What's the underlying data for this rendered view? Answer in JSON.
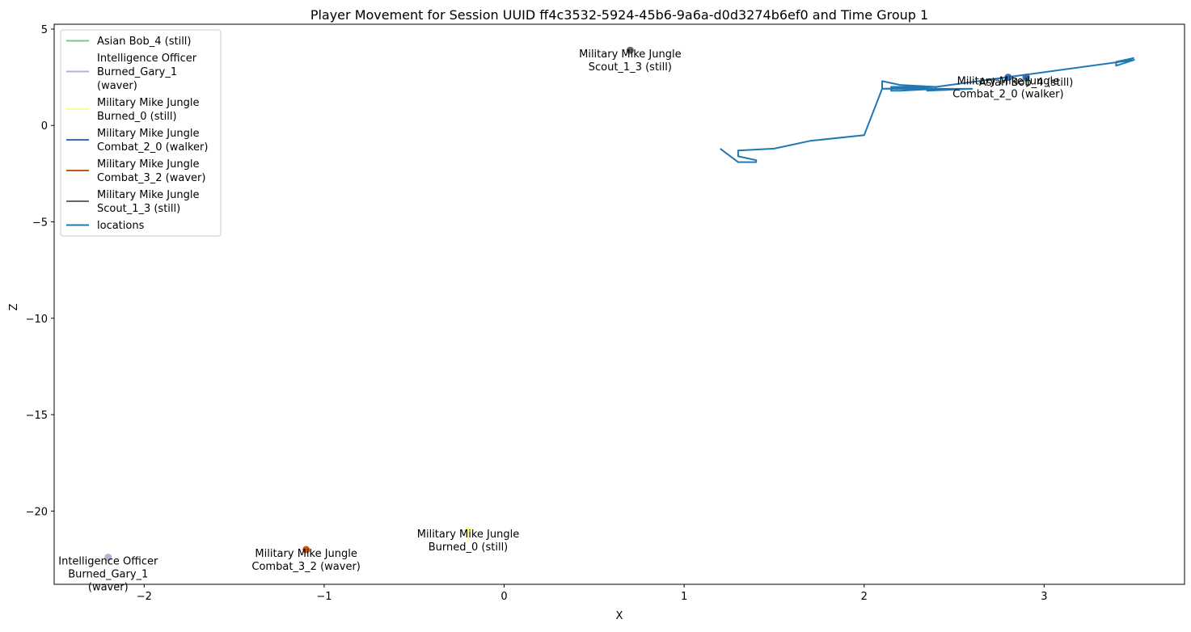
{
  "chart_data": {
    "type": "line",
    "title": "Player Movement for Session UUID ff4c3532-5924-45b6-9a6a-d0d3274b6ef0 and Time Group 1",
    "xlabel": "X",
    "ylabel": "Z",
    "xlim": [
      -2.5,
      3.78
    ],
    "ylim": [
      -23.8,
      5.25
    ],
    "xticks": [
      -2,
      -1,
      0,
      1,
      2,
      3
    ],
    "yticks": [
      5,
      0,
      -5,
      -10,
      -15,
      -20
    ],
    "grid": false,
    "legend_position": "upper-left",
    "legend": [
      {
        "label_lines": [
          "Asian Bob_4 (still)"
        ],
        "color": "#7fc97f"
      },
      {
        "label_lines": [
          "Intelligence Officer",
          "Burned_Gary_1",
          "(waver)"
        ],
        "color": "#beaed4"
      },
      {
        "label_lines": [
          "Military Mike Jungle",
          "Burned_0 (still)"
        ],
        "color": "#ffff99"
      },
      {
        "label_lines": [
          "Military Mike Jungle",
          "Combat_2_0 (walker)"
        ],
        "color": "#386cb0"
      },
      {
        "label_lines": [
          "Military Mike Jungle",
          "Combat_3_2 (waver)"
        ],
        "color": "#bf5b17"
      },
      {
        "label_lines": [
          "Military Mike Jungle",
          "Scout_1_3 (still)"
        ],
        "color": "#666666"
      },
      {
        "label_lines": [
          "locations"
        ],
        "color": "#1f77b4"
      }
    ],
    "series": [
      {
        "name": "Asian Bob_4 (still)",
        "color": "#7fc97f",
        "x": [
          2.9,
          2.9
        ],
        "y": [
          2.45,
          2.2
        ]
      },
      {
        "name": "Intelligence Officer Burned_Gary_1 (waver)",
        "color": "#beaed4",
        "x": [
          -2.2,
          -2.18
        ],
        "y": [
          -22.4,
          -22.5
        ]
      },
      {
        "name": "Military Mike Jungle Burned_0 (still)",
        "color": "#ffff99",
        "x": [
          -0.2,
          -0.2
        ],
        "y": [
          -21.0,
          -21.6
        ]
      },
      {
        "name": "Military Mike Jungle Combat_2_0 (walker)",
        "color": "#386cb0",
        "x": [
          2.8,
          2.82
        ],
        "y": [
          2.5,
          2.4
        ]
      },
      {
        "name": "Military Mike Jungle Combat_3_2 (waver)",
        "color": "#bf5b17",
        "x": [
          -1.1,
          -1.08
        ],
        "y": [
          -22.0,
          -22.1
        ]
      },
      {
        "name": "Military Mike Jungle Scout_1_3 (still)",
        "color": "#666666",
        "x": [
          0.7,
          0.7
        ],
        "y": [
          3.9,
          3.85
        ]
      },
      {
        "name": "locations",
        "color": "#1f77b4",
        "x": [
          3.5,
          3.4,
          3.4,
          3.5,
          2.4,
          2.2,
          2.1,
          2.1,
          2.6,
          2.35,
          2.35,
          2.15,
          2.15,
          2.2,
          2.4,
          2.4,
          2.1,
          2.0,
          1.7,
          1.5,
          1.3,
          1.3,
          1.4,
          1.4,
          1.3,
          1.2
        ],
        "y": [
          3.5,
          3.3,
          3.1,
          3.4,
          2.0,
          2.1,
          2.3,
          1.9,
          1.9,
          1.8,
          2.0,
          2.0,
          1.8,
          1.8,
          1.9,
          2.0,
          1.9,
          -0.5,
          -0.8,
          -1.2,
          -1.3,
          -1.6,
          -1.8,
          -1.9,
          -1.9,
          -1.2
        ]
      }
    ],
    "markers": [
      {
        "x": 2.9,
        "y": 2.45,
        "color": "#7fc97f"
      },
      {
        "x": 2.9,
        "y": 2.5,
        "color": "#386cb0"
      },
      {
        "x": 2.8,
        "y": 2.5,
        "color": "#386cb0"
      },
      {
        "x": 0.7,
        "y": 3.9,
        "color": "#666666"
      },
      {
        "x": -0.2,
        "y": -21.0,
        "color": "#ffff99"
      },
      {
        "x": -1.1,
        "y": -22.0,
        "color": "#bf5b17"
      },
      {
        "x": -2.2,
        "y": -22.4,
        "color": "#beaed4"
      }
    ],
    "annotations": [
      {
        "lines": [
          "Military Mike Jungle",
          "Scout_1_3 (still)"
        ],
        "x": 0.7,
        "y": 3.9
      },
      {
        "lines": [
          "Military Mike Jungle",
          "Combat_2_0 (walker)"
        ],
        "x": 2.8,
        "y": 2.5
      },
      {
        "lines": [
          "Asian Bob_4 (still)"
        ],
        "x": 2.9,
        "y": 2.45
      },
      {
        "lines": [
          "Military Mike Jungle",
          "Burned_0 (still)"
        ],
        "x": -0.2,
        "y": -21.0
      },
      {
        "lines": [
          "Military Mike Jungle",
          "Combat_3_2 (waver)"
        ],
        "x": -1.1,
        "y": -22.0
      },
      {
        "lines": [
          "Intelligence Officer",
          "Burned_Gary_1",
          "(waver)"
        ],
        "x": -2.2,
        "y": -22.4
      }
    ]
  }
}
